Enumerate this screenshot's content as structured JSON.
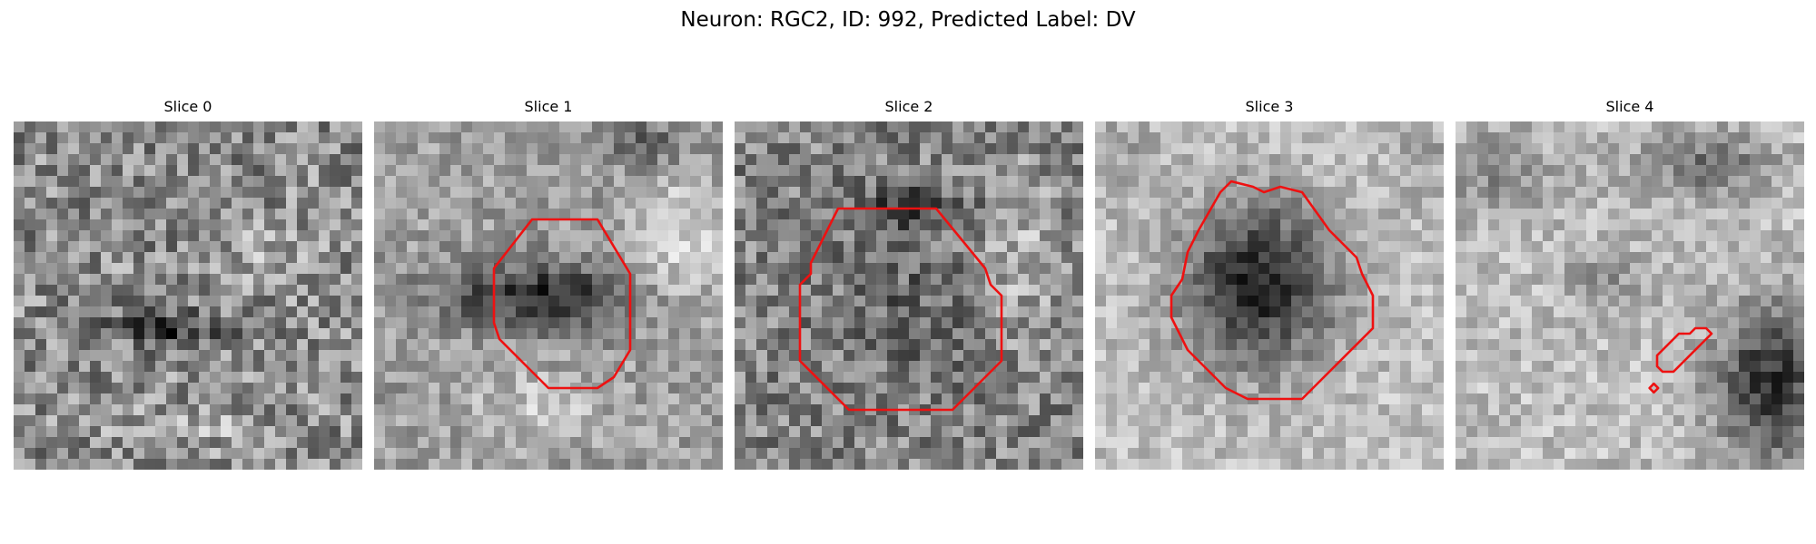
{
  "figure": {
    "title": "Neuron: RGC2, ID: 992, Predicted Label: DV",
    "outline_color": "#ee1111"
  },
  "panels": [
    {
      "title": "Slice 0"
    },
    {
      "title": "Slice 1"
    },
    {
      "title": "Slice 2"
    },
    {
      "title": "Slice 3"
    },
    {
      "title": "Slice 4"
    }
  ]
}
